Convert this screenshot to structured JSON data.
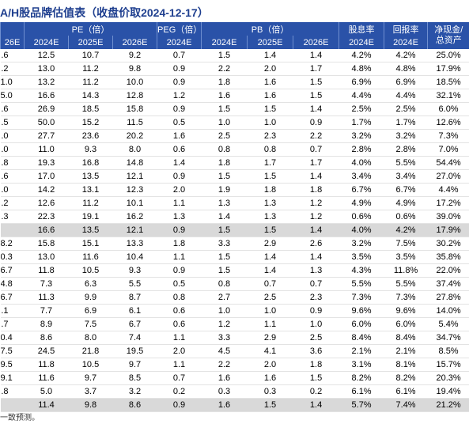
{
  "title": "A/H股品牌估值表（收盘价取2024-12-17）",
  "header": {
    "groups": [
      {
        "label": "PE（倍）",
        "span": 3
      },
      {
        "label": "PEG（倍）",
        "span": 1
      },
      {
        "label": "PB（倍）",
        "span": 3
      },
      {
        "label": "股息率",
        "span": 1
      },
      {
        "label": "回报率",
        "span": 1
      }
    ],
    "last": [
      "净现金/",
      "总资产"
    ],
    "years": [
      "26E",
      "2024E",
      "2025E",
      "2026E",
      "2024E",
      "2024E",
      "2025E",
      "2026E",
      "2024E",
      "2024E"
    ]
  },
  "table": {
    "rows": [
      [
        ".6",
        "12.5",
        "10.7",
        "9.2",
        "0.7",
        "1.5",
        "1.4",
        "1.4",
        "4.2%",
        "4.2%",
        "25.0%"
      ],
      [
        ".2",
        "13.0",
        "11.2",
        "9.8",
        "0.9",
        "2.2",
        "2.0",
        "1.7",
        "4.8%",
        "4.8%",
        "17.9%"
      ],
      [
        "1.0",
        "13.2",
        "11.2",
        "10.0",
        "0.9",
        "1.8",
        "1.6",
        "1.5",
        "6.9%",
        "6.9%",
        "18.5%"
      ],
      [
        "5.0",
        "16.6",
        "14.3",
        "12.8",
        "1.2",
        "1.6",
        "1.6",
        "1.5",
        "4.4%",
        "4.4%",
        "32.1%"
      ],
      [
        ".6",
        "26.9",
        "18.5",
        "15.8",
        "0.9",
        "1.5",
        "1.5",
        "1.4",
        "2.5%",
        "2.5%",
        "6.0%"
      ],
      [
        ".5",
        "50.0",
        "15.2",
        "11.5",
        "0.5",
        "1.0",
        "1.0",
        "0.9",
        "1.7%",
        "1.7%",
        "12.6%"
      ],
      [
        ".0",
        "27.7",
        "23.6",
        "20.2",
        "1.6",
        "2.5",
        "2.3",
        "2.2",
        "3.2%",
        "3.2%",
        "7.3%"
      ],
      [
        ".0",
        "11.0",
        "9.3",
        "8.0",
        "0.6",
        "0.8",
        "0.8",
        "0.7",
        "2.8%",
        "2.8%",
        "7.0%"
      ],
      [
        ".8",
        "19.3",
        "16.8",
        "14.8",
        "1.4",
        "1.8",
        "1.7",
        "1.7",
        "4.0%",
        "5.5%",
        "54.4%"
      ],
      [
        ".6",
        "17.0",
        "13.5",
        "12.1",
        "0.9",
        "1.5",
        "1.5",
        "1.4",
        "3.4%",
        "3.4%",
        "27.0%"
      ],
      [
        ".0",
        "14.2",
        "13.1",
        "12.3",
        "2.0",
        "1.9",
        "1.8",
        "1.8",
        "6.7%",
        "6.7%",
        "4.4%"
      ],
      [
        ".2",
        "12.6",
        "11.2",
        "10.1",
        "1.1",
        "1.3",
        "1.3",
        "1.2",
        "4.9%",
        "4.9%",
        "17.2%"
      ],
      [
        ".3",
        "22.3",
        "19.1",
        "16.2",
        "1.3",
        "1.4",
        "1.3",
        "1.2",
        "0.6%",
        "0.6%",
        "39.0%"
      ],
      [
        null,
        "16.6",
        "13.5",
        "12.1",
        "0.9",
        "1.5",
        "1.5",
        "1.4",
        "4.0%",
        "4.2%",
        "17.9%"
      ],
      [
        "8.2",
        "15.8",
        "15.1",
        "13.3",
        "1.8",
        "3.3",
        "2.9",
        "2.6",
        "3.2%",
        "7.5%",
        "30.2%"
      ],
      [
        "0.3",
        "13.0",
        "11.6",
        "10.4",
        "1.1",
        "1.5",
        "1.4",
        "1.4",
        "3.5%",
        "3.5%",
        "35.8%"
      ],
      [
        "6.7",
        "11.8",
        "10.5",
        "9.3",
        "0.9",
        "1.5",
        "1.4",
        "1.3",
        "4.3%",
        "11.8%",
        "22.0%"
      ],
      [
        "4.8",
        "7.3",
        "6.3",
        "5.5",
        "0.5",
        "0.8",
        "0.7",
        "0.7",
        "5.5%",
        "5.5%",
        "37.4%"
      ],
      [
        "6.7",
        "11.3",
        "9.9",
        "8.7",
        "0.8",
        "2.7",
        "2.5",
        "2.3",
        "7.3%",
        "7.3%",
        "27.8%"
      ],
      [
        ".1",
        "7.7",
        "6.9",
        "6.1",
        "0.6",
        "1.0",
        "1.0",
        "0.9",
        "9.6%",
        "9.6%",
        "14.0%"
      ],
      [
        ".7",
        "8.9",
        "7.5",
        "6.7",
        "0.6",
        "1.2",
        "1.1",
        "1.0",
        "6.0%",
        "6.0%",
        "5.4%"
      ],
      [
        "0.4",
        "8.6",
        "8.0",
        "7.4",
        "1.1",
        "3.3",
        "2.9",
        "2.5",
        "8.4%",
        "8.4%",
        "34.7%"
      ],
      [
        "7.5",
        "24.5",
        "21.8",
        "19.5",
        "2.0",
        "4.5",
        "4.1",
        "3.6",
        "2.1%",
        "2.1%",
        "8.5%"
      ],
      [
        "9.5",
        "11.8",
        "10.5",
        "9.7",
        "1.1",
        "2.2",
        "2.0",
        "1.8",
        "3.1%",
        "8.1%",
        "15.7%"
      ],
      [
        "9.1",
        "11.6",
        "9.7",
        "8.5",
        "0.7",
        "1.6",
        "1.6",
        "1.5",
        "8.2%",
        "8.2%",
        "20.3%"
      ],
      [
        ".8",
        "5.0",
        "3.7",
        "3.2",
        "0.2",
        "0.3",
        "0.3",
        "0.2",
        "6.1%",
        "6.1%",
        "19.4%"
      ],
      [
        null,
        "11.4",
        "9.8",
        "8.6",
        "0.9",
        "1.6",
        "1.5",
        "1.4",
        "5.7%",
        "7.4%",
        "21.2%"
      ]
    ]
  },
  "footer": "一致预测。"
}
